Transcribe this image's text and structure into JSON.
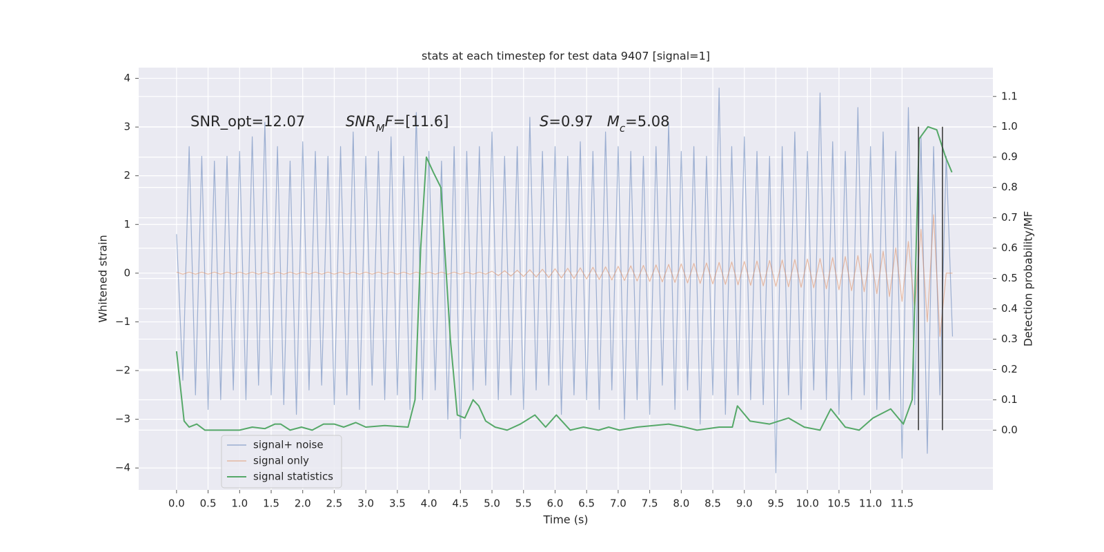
{
  "chart_data": {
    "type": "line",
    "title": "stats at each timestep for test data 9407 [signal=1]",
    "x_label": "Time (s)",
    "y_label": "Whitened strain",
    "y2_label": "Detection probability/MF",
    "xlim": [
      -0.6,
      12.94
    ],
    "ylim": [
      -4.45,
      4.22
    ],
    "y2lim": [
      -0.197,
      1.195
    ],
    "xticks": [
      {
        "value": 0,
        "label": "0.0"
      },
      0.5,
      {
        "value": 1,
        "label": "1.0"
      },
      1.5,
      {
        "value": 2,
        "label": "2.0"
      },
      2.5,
      {
        "value": 3,
        "label": "3.0"
      },
      3.5,
      {
        "value": 4,
        "label": "4.0"
      },
      4.5,
      {
        "value": 5,
        "label": "5.0"
      },
      5.5,
      {
        "value": 6,
        "label": "6.0"
      },
      6.5,
      {
        "value": 7,
        "label": "7.0"
      },
      7.5,
      {
        "value": 8,
        "label": "8.0"
      },
      8.5,
      {
        "value": 9,
        "label": "9.0"
      },
      9.5,
      {
        "value": 10,
        "label": "10.0"
      },
      10.5,
      {
        "value": 11,
        "label": "11.0"
      },
      11.5
    ],
    "yticks": [
      {
        "value": -4,
        "label": "−4"
      },
      {
        "value": -3,
        "label": "−3"
      },
      {
        "value": -2,
        "label": "−2"
      },
      {
        "value": -1,
        "label": "−1"
      },
      0,
      1,
      2,
      3,
      4
    ],
    "y2ticks": [
      {
        "value": 0,
        "label": "0.0"
      },
      0.1,
      0.2,
      0.3,
      0.4,
      0.5,
      0.6,
      0.7,
      0.8,
      0.9,
      {
        "value": 1,
        "label": "1.0"
      },
      1.1
    ],
    "grid": true,
    "legend": "lower left",
    "x": [
      0.0,
      0.1,
      0.2,
      0.3,
      0.4,
      0.5,
      0.6,
      0.7,
      0.8,
      0.9,
      1.0,
      1.1,
      1.2,
      1.3,
      1.4,
      1.5,
      1.6,
      1.7,
      1.8,
      1.9,
      2.0,
      2.1,
      2.2,
      2.3,
      2.4,
      2.5,
      2.6,
      2.7,
      2.8,
      2.9,
      3.0,
      3.1,
      3.2,
      3.3,
      3.4,
      3.5,
      3.6,
      3.7,
      3.8,
      3.9,
      4.0,
      4.1,
      4.2,
      4.3,
      4.4,
      4.5,
      4.6,
      4.7,
      4.8,
      4.9,
      5.0,
      5.1,
      5.2,
      5.3,
      5.4,
      5.5,
      5.6,
      5.7,
      5.8,
      5.9,
      6.0,
      6.1,
      6.2,
      6.3,
      6.4,
      6.5,
      6.6,
      6.7,
      6.8,
      6.9,
      7.0,
      7.1,
      7.2,
      7.3,
      7.4,
      7.5,
      7.6,
      7.7,
      7.8,
      7.9,
      8.0,
      8.1,
      8.2,
      8.3,
      8.4,
      8.5,
      8.6,
      8.7,
      8.8,
      8.9,
      9.0,
      9.1,
      9.2,
      9.3,
      9.4,
      9.5,
      9.6,
      9.7,
      9.8,
      9.9,
      10.0,
      10.1,
      10.2,
      10.3,
      10.4,
      10.5,
      10.6,
      10.7,
      10.8,
      10.9,
      11.0,
      11.1,
      11.2,
      11.3,
      11.4,
      11.5,
      11.6,
      11.7,
      11.8,
      11.9,
      12.0,
      12.1,
      12.2,
      12.3
    ],
    "series": [
      {
        "name": "signal+ noise",
        "color": "#4c72b0",
        "alpha": 0.5,
        "values": [
          0.8,
          -2.2,
          2.6,
          -2.5,
          2.4,
          -2.8,
          2.3,
          -2.6,
          2.4,
          -2.4,
          2.5,
          -2.6,
          2.8,
          -2.3,
          3.1,
          -2.5,
          2.6,
          -2.7,
          2.3,
          -2.9,
          2.7,
          -2.4,
          2.5,
          -2.3,
          2.4,
          -2.7,
          2.6,
          -2.5,
          2.9,
          -2.8,
          2.4,
          -2.3,
          2.5,
          -2.6,
          2.8,
          -2.5,
          2.4,
          -2.8,
          3.3,
          -2.6,
          2.5,
          -2.4,
          2.3,
          -3.0,
          2.6,
          -3.4,
          2.5,
          -2.4,
          2.6,
          -2.3,
          2.9,
          -2.6,
          2.4,
          -2.5,
          2.6,
          -2.8,
          3.2,
          -2.4,
          2.5,
          -2.3,
          2.6,
          -2.9,
          2.4,
          -2.5,
          2.7,
          -2.6,
          2.5,
          -2.8,
          2.9,
          -2.4,
          2.6,
          -3.0,
          2.5,
          -2.6,
          2.4,
          -2.9,
          2.6,
          -2.3,
          3.1,
          -2.8,
          2.5,
          -2.4,
          2.6,
          -3.1,
          2.4,
          -2.5,
          3.8,
          -2.9,
          2.6,
          -2.5,
          2.8,
          -2.6,
          2.5,
          -2.7,
          2.4,
          -4.1,
          2.6,
          -2.5,
          2.9,
          -2.8,
          2.5,
          -2.4,
          3.7,
          -2.6,
          2.7,
          -2.9,
          2.5,
          -2.6,
          3.4,
          -2.5,
          2.6,
          -2.8,
          2.9,
          -2.6,
          2.5,
          -3.8,
          3.4,
          -2.7,
          2.8,
          -3.7,
          2.6,
          -2.5,
          2.4,
          -1.3
        ]
      },
      {
        "name": "signal only",
        "color": "#dd8452",
        "alpha": 0.5,
        "values": [
          0.02,
          -0.02,
          0.02,
          -0.02,
          0.02,
          -0.02,
          0.02,
          -0.02,
          0.02,
          -0.02,
          0.02,
          -0.02,
          0.02,
          -0.02,
          0.02,
          -0.02,
          0.02,
          -0.02,
          0.02,
          -0.02,
          0.02,
          -0.02,
          0.02,
          -0.02,
          0.02,
          -0.02,
          0.02,
          -0.02,
          0.02,
          -0.02,
          0.02,
          -0.02,
          0.02,
          -0.02,
          0.02,
          -0.02,
          0.02,
          -0.02,
          0.02,
          -0.02,
          0.02,
          -0.02,
          0.02,
          -0.02,
          0.02,
          -0.02,
          0.02,
          -0.02,
          0.02,
          -0.02,
          0.04,
          -0.05,
          0.05,
          -0.06,
          0.06,
          -0.07,
          0.07,
          -0.08,
          0.08,
          -0.09,
          0.09,
          -0.1,
          0.1,
          -0.11,
          0.11,
          -0.12,
          0.12,
          -0.13,
          0.13,
          -0.14,
          0.14,
          -0.15,
          0.15,
          -0.16,
          0.16,
          -0.17,
          0.17,
          -0.18,
          0.18,
          -0.19,
          0.19,
          -0.2,
          0.2,
          -0.21,
          0.21,
          -0.22,
          0.22,
          -0.23,
          0.23,
          -0.24,
          0.24,
          -0.25,
          0.25,
          -0.26,
          0.26,
          -0.27,
          0.27,
          -0.28,
          0.28,
          -0.29,
          0.29,
          -0.3,
          0.3,
          -0.32,
          0.32,
          -0.34,
          0.34,
          -0.36,
          0.36,
          -0.38,
          0.4,
          -0.42,
          0.45,
          -0.48,
          0.52,
          -0.58,
          0.65,
          -0.75,
          0.9,
          -1.0,
          1.2,
          -1.3,
          0.0,
          0.0
        ]
      },
      {
        "name": "signal statistics",
        "color": "#55a868",
        "axis": "y2",
        "x": [
          0,
          0.12,
          0.2,
          0.32,
          0.45,
          0.6,
          0.8,
          1.0,
          1.2,
          1.4,
          1.56,
          1.65,
          1.8,
          1.98,
          2.15,
          2.33,
          2.5,
          2.65,
          2.84,
          3.0,
          3.3,
          3.67,
          3.78,
          3.87,
          3.96,
          4.07,
          4.19,
          4.34,
          4.45,
          4.57,
          4.7,
          4.79,
          4.9,
          5.05,
          5.24,
          5.45,
          5.68,
          5.85,
          6.02,
          6.24,
          6.45,
          6.69,
          6.85,
          7.02,
          7.3,
          7.8,
          8.05,
          8.25,
          8.6,
          8.81,
          8.89,
          9.09,
          9.4,
          9.7,
          9.95,
          10.2,
          10.37,
          10.6,
          10.82,
          11.04,
          11.32,
          11.52,
          11.66,
          11.71,
          11.77,
          11.91,
          12.05,
          12.19,
          12.29
        ],
        "values": [
          0.26,
          0.03,
          0.01,
          0.02,
          0.0,
          0.0,
          0.0,
          0.0,
          0.01,
          0.005,
          0.02,
          0.02,
          0.0,
          0.01,
          0.0,
          0.02,
          0.02,
          0.01,
          0.025,
          0.01,
          0.015,
          0.01,
          0.1,
          0.6,
          0.9,
          0.85,
          0.8,
          0.3,
          0.05,
          0.04,
          0.1,
          0.08,
          0.03,
          0.01,
          0.0,
          0.02,
          0.05,
          0.01,
          0.05,
          0.0,
          0.01,
          0.0,
          0.01,
          0.0,
          0.01,
          0.02,
          0.01,
          0.0,
          0.01,
          0.01,
          0.08,
          0.03,
          0.02,
          0.04,
          0.01,
          0.0,
          0.07,
          0.01,
          0.0,
          0.04,
          0.07,
          0.02,
          0.1,
          0.5,
          0.96,
          1.0,
          0.99,
          0.9,
          0.85
        ]
      }
    ],
    "vlines": {
      "x": [
        11.76,
        12.14
      ],
      "ymin": 0.0,
      "ymax": 1.0,
      "axis": "y2",
      "color": "#333333"
    },
    "annotations": [
      {
        "parts": [
          "SNR_opt=12.07"
        ]
      },
      {
        "parts": [
          "SNR",
          "M",
          "F",
          "=[11.6]"
        ]
      },
      {
        "parts": [
          "S",
          "=0.97   ",
          "M",
          "c",
          "=5.08"
        ]
      }
    ]
  }
}
